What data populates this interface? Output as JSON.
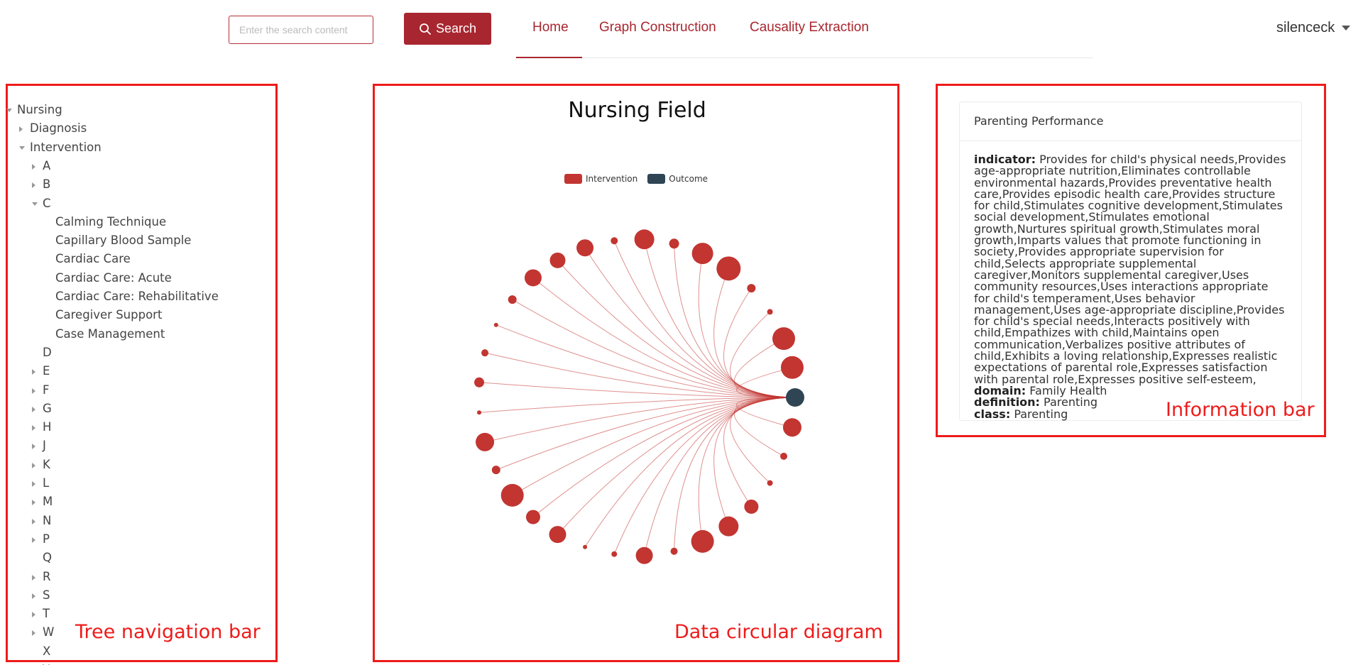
{
  "search": {
    "placeholder": "Enter the search content",
    "button_label": "Search"
  },
  "nav": {
    "items": [
      "Home",
      "Graph Construction",
      "Causality Extraction"
    ],
    "active": "Home"
  },
  "user": {
    "name": "silenceck"
  },
  "tree": {
    "root": "Nursing",
    "items": [
      {
        "label": "Diagnosis",
        "state": "collapsed"
      },
      {
        "label": "Intervention",
        "state": "expanded"
      },
      {
        "label": "A",
        "state": "collapsed"
      },
      {
        "label": "B",
        "state": "collapsed"
      },
      {
        "label": "C",
        "state": "expanded"
      },
      {
        "label": "Calming Technique",
        "state": "leaf"
      },
      {
        "label": "Capillary Blood Sample",
        "state": "leaf"
      },
      {
        "label": "Cardiac Care",
        "state": "leaf"
      },
      {
        "label": "Cardiac Care: Acute",
        "state": "leaf"
      },
      {
        "label": "Cardiac Care: Rehabilitative",
        "state": "leaf"
      },
      {
        "label": "Caregiver Support",
        "state": "leaf"
      },
      {
        "label": "Case Management",
        "state": "leaf"
      },
      {
        "label": "D",
        "state": "leaf"
      },
      {
        "label": "E",
        "state": "collapsed"
      },
      {
        "label": "F",
        "state": "collapsed"
      },
      {
        "label": "G",
        "state": "collapsed"
      },
      {
        "label": "H",
        "state": "collapsed"
      },
      {
        "label": "J",
        "state": "collapsed"
      },
      {
        "label": "K",
        "state": "collapsed"
      },
      {
        "label": "L",
        "state": "collapsed"
      },
      {
        "label": "M",
        "state": "collapsed"
      },
      {
        "label": "N",
        "state": "collapsed"
      },
      {
        "label": "P",
        "state": "collapsed"
      },
      {
        "label": "Q",
        "state": "leaf"
      },
      {
        "label": "R",
        "state": "collapsed"
      },
      {
        "label": "S",
        "state": "collapsed"
      },
      {
        "label": "T",
        "state": "collapsed"
      },
      {
        "label": "W",
        "state": "collapsed"
      },
      {
        "label": "X",
        "state": "leaf"
      },
      {
        "label": "Y",
        "state": "leaf"
      }
    ]
  },
  "diagram": {
    "title": "Nursing Field",
    "legend": [
      {
        "name": "Intervention",
        "color": "#c23531"
      },
      {
        "name": "Outcome",
        "color": "#2f4554"
      }
    ],
    "intervention_node_count": 32,
    "outcome_node_count": 1
  },
  "info": {
    "title": "Parenting Performance",
    "fields": [
      {
        "key": "indicator:",
        "value": "Provides for child's physical needs,Provides age-appropriate nutrition,Eliminates controllable environmental hazards,Provides preventative health care,Provides episodic health care,Provides structure for child,Stimulates cognitive development,Stimulates social development,Stimulates emotional growth,Nurtures spiritual growth,Stimulates moral growth,Imparts values that promote functioning in society,Provides appropriate supervision for child,Selects appropriate supplemental caregiver,Monitors supplemental caregiver,Uses community resources,Uses interactions appropriate for child's temperament,Uses behavior management,Uses age-appropriate discipline,Provides for child's special needs,Interacts positively with child,Empathizes with child,Maintains open communication,Verbalizes positive attributes of child,Exhibits a loving relationship,Expresses realistic expectations of parental role,Expresses satisfaction with parental role,Expresses positive self-esteem,"
      },
      {
        "key": "domain:",
        "value": "Family Health"
      },
      {
        "key": "definition:",
        "value": "Parenting"
      },
      {
        "key": "class:",
        "value": "Parenting"
      }
    ]
  },
  "annotations": {
    "tree_caption": "Tree navigation bar",
    "diagram_caption": "Data circular diagram",
    "info_caption": "Information bar"
  }
}
